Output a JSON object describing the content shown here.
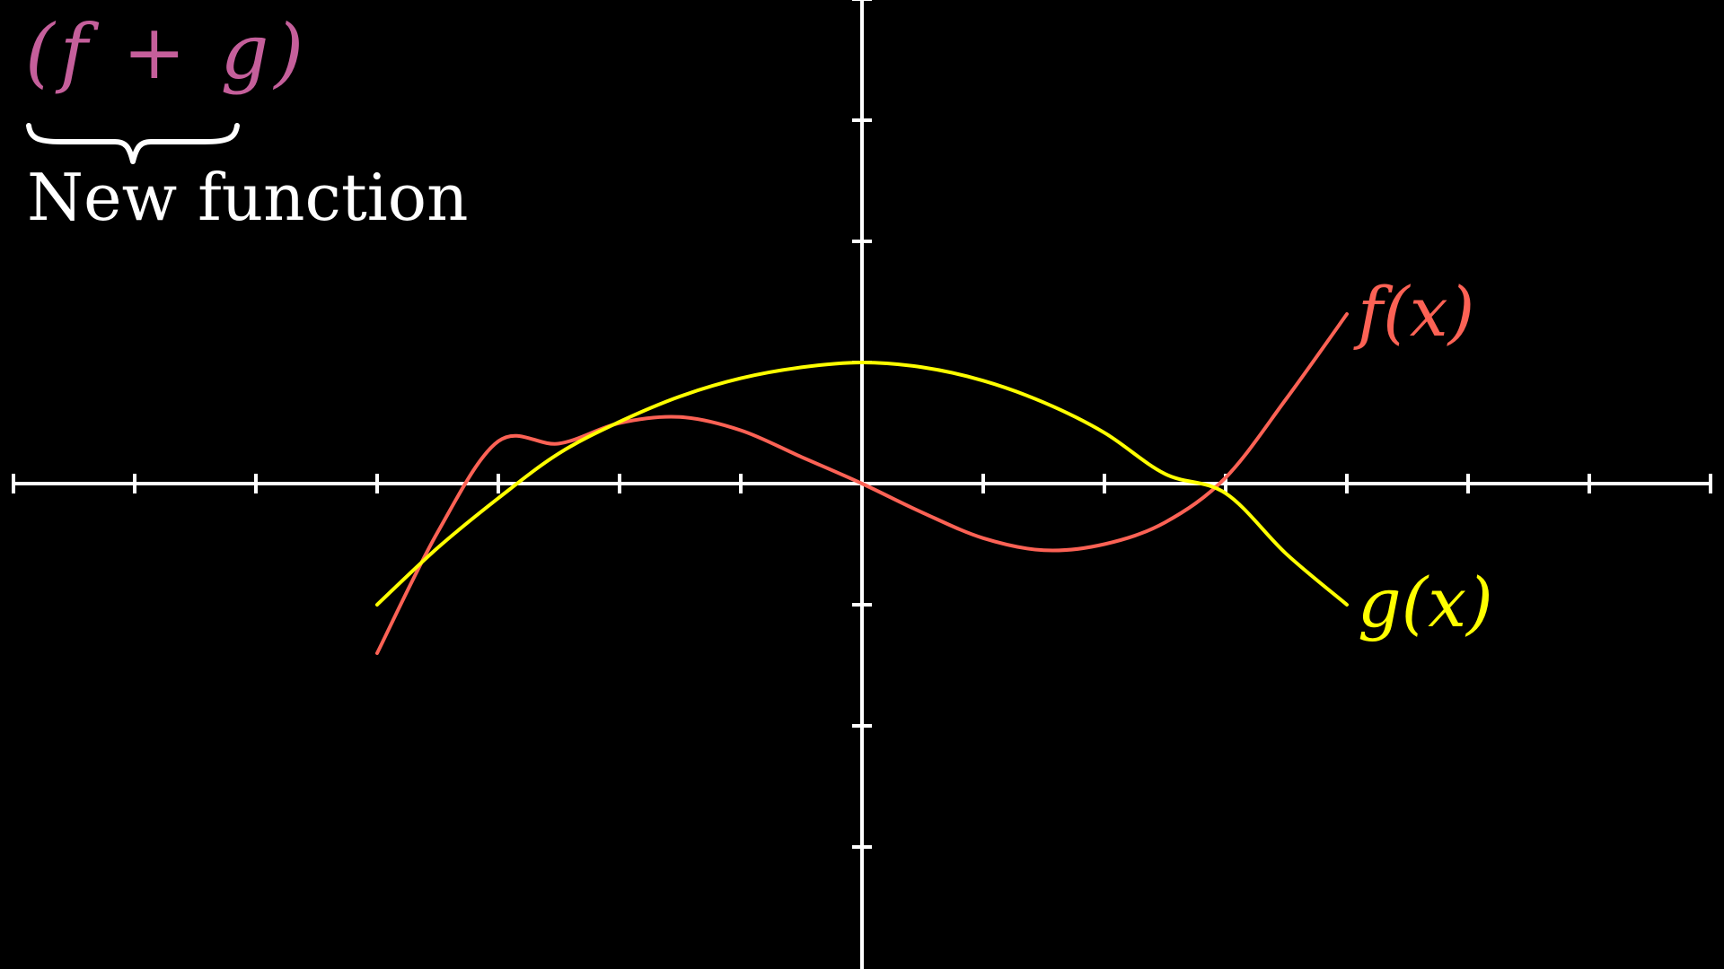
{
  "caption": {
    "formula": "(f + g)",
    "text": "New function",
    "formula_color": "#c55f9b",
    "text_color": "#ffffff"
  },
  "colors": {
    "background": "#000000",
    "axes": "#ffffff"
  },
  "chart_data": {
    "type": "line",
    "title": "",
    "xlabel": "",
    "ylabel": "",
    "xlim": [
      -7,
      7
    ],
    "ylim": [
      -4,
      4
    ],
    "x_ticks": [
      -7,
      -6,
      -5,
      -4,
      -3,
      -2,
      -1,
      1,
      2,
      3,
      4,
      5,
      6,
      7
    ],
    "y_ticks": [
      -3,
      -2,
      -1,
      1,
      2,
      3,
      4
    ],
    "tick_labels_shown": false,
    "grid": false,
    "legend": "none",
    "series": [
      {
        "name": "f(x)",
        "color": "#fc6255",
        "x": [
          -4,
          -3.5,
          -3,
          -2.5,
          -2,
          -1.5,
          -1,
          -0.5,
          0,
          0.5,
          1,
          1.5,
          2,
          2.5,
          3,
          3.5,
          4
        ],
        "y": [
          -1.4,
          -0.4,
          0.35,
          0.33,
          0.5,
          0.55,
          0.44,
          0.22,
          0,
          -0.24,
          -0.45,
          -0.55,
          -0.5,
          -0.32,
          0.05,
          0.7,
          1.4
        ]
      },
      {
        "name": "g(x)",
        "color": "#ffff00",
        "x": [
          -4,
          -3.5,
          -3,
          -2.5,
          -2,
          -1.5,
          -1,
          -0.5,
          0,
          0.5,
          1,
          1.5,
          2,
          2.5,
          3,
          3.5,
          4
        ],
        "y": [
          -1.0,
          -0.53,
          -0.12,
          0.25,
          0.51,
          0.72,
          0.87,
          0.96,
          1.0,
          0.96,
          0.85,
          0.67,
          0.42,
          0.08,
          -0.08,
          -0.58,
          -1.0
        ]
      }
    ]
  }
}
